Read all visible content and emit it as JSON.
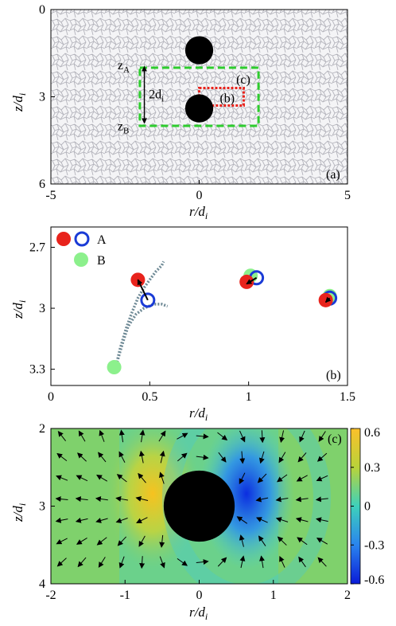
{
  "figure": {
    "panels": [
      "(a)",
      "(b)",
      "(c)"
    ]
  },
  "chart_data": [
    {
      "id": "a",
      "type": "scatter",
      "tag": "(a)",
      "xlabel": "r/d",
      "xlabel_sub": "i",
      "ylabel": "z/d",
      "ylabel_sub": "i",
      "xlim": [
        -5,
        5
      ],
      "ylim": [
        0,
        6
      ],
      "y_inverted": true,
      "xticks": [
        -5,
        0,
        5
      ],
      "yticks": [
        0,
        3,
        6
      ],
      "background": "granular packing (light gray cells)",
      "particles": [
        {
          "r": 0,
          "z": 1.4,
          "d": 1
        },
        {
          "r": 0,
          "z": 3.4,
          "d": 1
        }
      ],
      "boxes": [
        {
          "label": "(c)",
          "color": "#2ecc2e",
          "r": [
            -2,
            2
          ],
          "z": [
            2,
            4
          ]
        },
        {
          "label": "(b)",
          "color": "#e8231c",
          "r": [
            0,
            1.5
          ],
          "z": [
            2.7,
            3.3
          ]
        }
      ],
      "annotations": {
        "zA": {
          "main": "z",
          "sub": "A"
        },
        "zB": {
          "main": "z",
          "sub": "B"
        },
        "gap": {
          "main": "2d",
          "sub": "i"
        }
      }
    },
    {
      "id": "b",
      "type": "scatter",
      "tag": "(b)",
      "xlabel": "r/d",
      "xlabel_sub": "i",
      "ylabel": "z/d",
      "ylabel_sub": "i",
      "xlim": [
        0,
        1.5
      ],
      "ylim": [
        2.6,
        3.38
      ],
      "y_inverted": true,
      "xticks": [
        "0",
        "0.5",
        "1",
        "1.5"
      ],
      "yticks": [
        "2.7",
        "3",
        "3.3"
      ],
      "legend": [
        {
          "label": "A",
          "markers": [
            "#e8231c",
            "#1a3bd6"
          ]
        },
        {
          "label": "B",
          "markers": [
            "#8cf08c"
          ]
        }
      ],
      "legend_position": "top-left",
      "series": [
        {
          "name": "A",
          "points": [
            [
              0.44,
              2.86
            ],
            [
              0.49,
              2.96
            ],
            [
              0.99,
              2.87
            ],
            [
              1.04,
              2.85
            ],
            [
              1.39,
              2.96
            ],
            [
              1.41,
              2.95
            ]
          ]
        },
        {
          "name": "B",
          "points": [
            [
              0.32,
              3.29
            ],
            [
              1.01,
              2.84
            ],
            [
              1.41,
              2.94
            ]
          ]
        }
      ],
      "displacements": [
        {
          "from": [
            0.49,
            2.96
          ],
          "to": [
            0.44,
            2.86
          ]
        },
        {
          "from": [
            1.04,
            2.85
          ],
          "to": [
            0.99,
            2.88
          ]
        },
        {
          "from": [
            1.41,
            2.95
          ],
          "to": [
            1.39,
            2.97
          ]
        }
      ],
      "trajectories": [
        [
          [
            0.33,
            3.28
          ],
          [
            0.35,
            3.2
          ],
          [
            0.38,
            3.1
          ],
          [
            0.41,
            3.02
          ],
          [
            0.44,
            2.95
          ],
          [
            0.47,
            2.9
          ],
          [
            0.5,
            2.86
          ],
          [
            0.53,
            2.82
          ],
          [
            0.56,
            2.79
          ],
          [
            0.57,
            2.77
          ]
        ],
        [
          [
            0.33,
            3.28
          ],
          [
            0.36,
            3.18
          ],
          [
            0.39,
            3.09
          ],
          [
            0.43,
            3.03
          ],
          [
            0.47,
            3.0
          ],
          [
            0.52,
            2.98
          ],
          [
            0.56,
            2.98
          ],
          [
            0.59,
            2.99
          ]
        ]
      ]
    },
    {
      "id": "c",
      "type": "heatmap",
      "tag": "(c)",
      "xlabel": "r/d",
      "xlabel_sub": "i",
      "ylabel": "z/d",
      "ylabel_sub": "i",
      "xlim": [
        -2,
        2
      ],
      "ylim": [
        2,
        4
      ],
      "y_inverted": true,
      "xticks": [
        "-2",
        "-1",
        "0",
        "1",
        "2"
      ],
      "yticks": [
        "2",
        "3",
        "4"
      ],
      "colorbar": {
        "min": -0.6,
        "max": 0.6,
        "ticks": [
          "0.6",
          "0.3",
          "0",
          "-0.3",
          "-0.6"
        ],
        "colormap": "jet-like (blue to cyan to green to yellow)"
      },
      "field_extrema": {
        "max": 0.6,
        "at_r": -0.7,
        "min": -0.6,
        "at_r_min": 0.7
      },
      "obstacle": {
        "r": 0,
        "z": 3,
        "d": 1
      },
      "overlay": "velocity vectors (black arrows)"
    }
  ]
}
